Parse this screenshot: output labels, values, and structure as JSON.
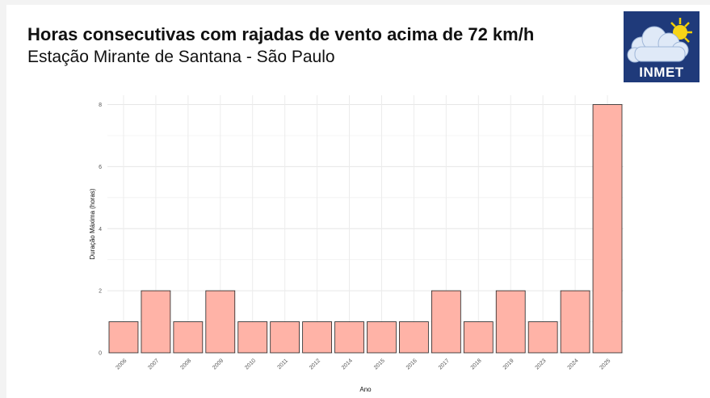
{
  "header": {
    "title": "Horas consecutivas com rajadas de vento acima de 72 km/h",
    "subtitle": "Estação Mirante de Santana - São Paulo"
  },
  "logo": {
    "text": "INMET",
    "bg_color": "#1f3a7a"
  },
  "chart_data": {
    "type": "bar",
    "categories": [
      "2006",
      "2007",
      "2008",
      "2009",
      "2010",
      "2011",
      "2012",
      "2014",
      "2015",
      "2016",
      "2017",
      "2018",
      "2019",
      "2023",
      "2024",
      "2025"
    ],
    "values": [
      1,
      2,
      1,
      2,
      1,
      1,
      1,
      1,
      1,
      1,
      2,
      1,
      2,
      1,
      2,
      8
    ],
    "xlabel": "Ano",
    "ylabel": "Duração Máxima (horas)",
    "ylim": [
      0,
      8.3
    ],
    "yticks": [
      0,
      2,
      4,
      6,
      8
    ],
    "grid": true,
    "bar_color": "#ffb3a7",
    "bar_edge_color": "#222222"
  }
}
